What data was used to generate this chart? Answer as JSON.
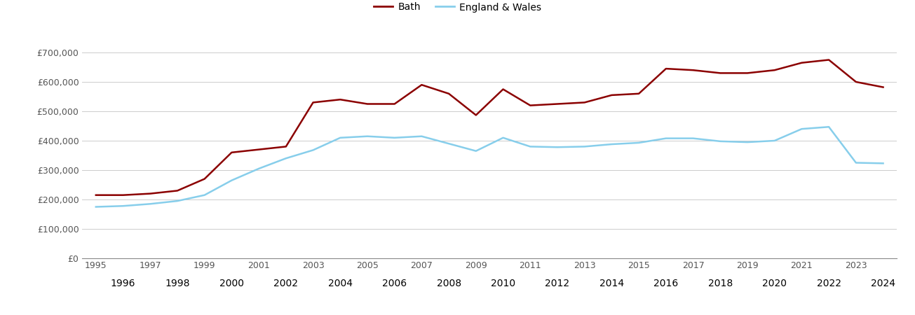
{
  "bath_years": [
    1995,
    1996,
    1997,
    1998,
    1999,
    2000,
    2001,
    2002,
    2003,
    2004,
    2005,
    2006,
    2007,
    2008,
    2009,
    2010,
    2011,
    2012,
    2013,
    2014,
    2015,
    2016,
    2017,
    2018,
    2019,
    2020,
    2021,
    2022,
    2023,
    2024
  ],
  "bath_values": [
    215000,
    215000,
    220000,
    230000,
    270000,
    360000,
    370000,
    380000,
    530000,
    540000,
    525000,
    525000,
    590000,
    560000,
    487000,
    575000,
    520000,
    525000,
    530000,
    555000,
    560000,
    645000,
    640000,
    630000,
    630000,
    640000,
    665000,
    675000,
    600000,
    582000
  ],
  "ew_years": [
    1995,
    1996,
    1997,
    1998,
    1999,
    2000,
    2001,
    2002,
    2003,
    2004,
    2005,
    2006,
    2007,
    2008,
    2009,
    2010,
    2011,
    2012,
    2013,
    2014,
    2015,
    2016,
    2017,
    2018,
    2019,
    2020,
    2021,
    2022,
    2023,
    2024
  ],
  "ew_values": [
    175000,
    178000,
    185000,
    195000,
    215000,
    265000,
    305000,
    340000,
    368000,
    410000,
    415000,
    410000,
    415000,
    390000,
    365000,
    410000,
    380000,
    378000,
    380000,
    388000,
    393000,
    408000,
    408000,
    398000,
    395000,
    400000,
    440000,
    447000,
    325000,
    323000
  ],
  "bath_color": "#8B0000",
  "ew_color": "#87CEEB",
  "bath_label": "Bath",
  "ew_label": "England & Wales",
  "ylim": [
    0,
    750000
  ],
  "yticks": [
    0,
    100000,
    200000,
    300000,
    400000,
    500000,
    600000,
    700000
  ],
  "ytick_labels": [
    "£0",
    "£100,000",
    "£200,000",
    "£300,000",
    "£400,000",
    "£500,000",
    "£600,000",
    "£700,000"
  ],
  "bg_color": "#ffffff",
  "grid_color": "#cccccc",
  "line_width": 1.8,
  "xticks_row1": [
    1995,
    1997,
    1999,
    2001,
    2003,
    2005,
    2007,
    2009,
    2011,
    2013,
    2015,
    2017,
    2019,
    2021,
    2023
  ],
  "xticks_row2": [
    1996,
    1998,
    2000,
    2002,
    2004,
    2006,
    2008,
    2010,
    2012,
    2014,
    2016,
    2018,
    2020,
    2022,
    2024
  ],
  "legend_labels": [
    "Bath",
    "England & Wales"
  ],
  "legend_colors": [
    "#8B0000",
    "#87CEEB"
  ],
  "xlim": [
    1994.5,
    2024.5
  ]
}
